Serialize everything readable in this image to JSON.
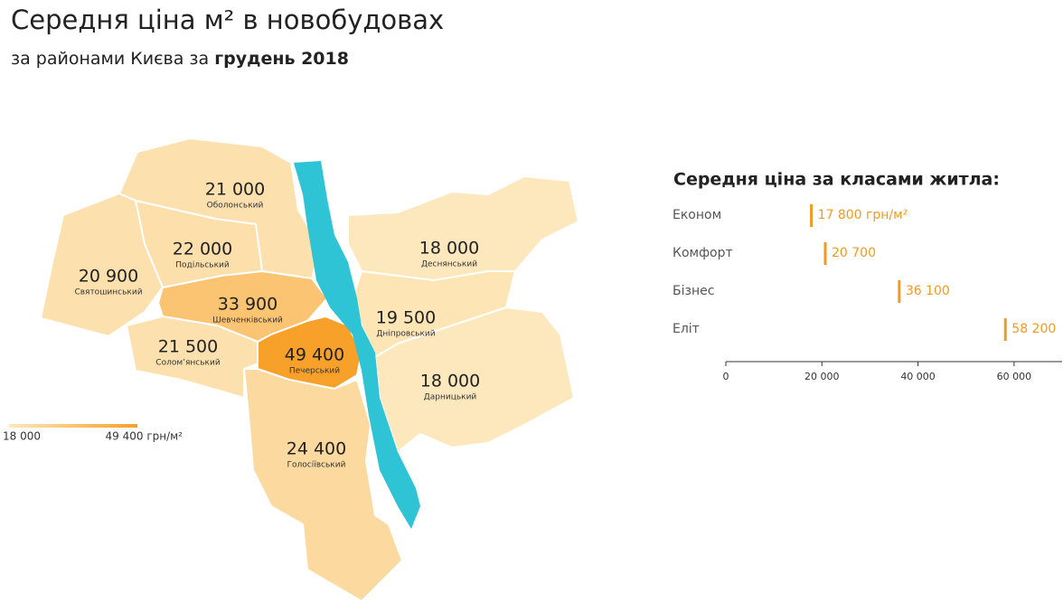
{
  "header": {
    "title": "Середня ціна м² в новобудовах",
    "subtitle": "за районами Києва за",
    "subtitle_emphasis": "грудень 2018"
  },
  "map": {
    "districts": [
      {
        "name": "Оболонський",
        "value": 21000,
        "label": "21 000"
      },
      {
        "name": "Подільський",
        "value": 22000,
        "label": "22 000"
      },
      {
        "name": "Святошинський",
        "value": 20900,
        "label": "20 900"
      },
      {
        "name": "Шевченківський",
        "value": 33900,
        "label": "33 900"
      },
      {
        "name": "Солом’янський",
        "value": 21500,
        "label": "21 500"
      },
      {
        "name": "Печерський",
        "value": 49400,
        "label": "49 400"
      },
      {
        "name": "Голосіївський",
        "value": 24400,
        "label": "24 400"
      },
      {
        "name": "Деснянський",
        "value": 18000,
        "label": "18 000"
      },
      {
        "name": "Дніпровський",
        "value": 19500,
        "label": "19 500"
      },
      {
        "name": "Дарницький",
        "value": 18000,
        "label": "18 000"
      }
    ],
    "legend": {
      "min": {
        "value": 18000,
        "label": "18 000"
      },
      "max": {
        "value": 49400,
        "label": "49 400 грн/м²"
      },
      "colors": [
        "#fde8bd",
        "#f7a02a"
      ]
    },
    "river_color": "#2ec4d6"
  },
  "chart_data": {
    "type": "bar",
    "orientation": "horizontal",
    "title": "Середня ціна за класами житла:",
    "categories": [
      "Економ",
      "Комфорт",
      "Бізнес",
      "Еліт"
    ],
    "values": [
      17800,
      20700,
      36100,
      58200
    ],
    "value_labels": [
      "17 800 грн/м²",
      "20 700",
      "36 100",
      "58 200"
    ],
    "color": "#f39a1e",
    "xlim": [
      0,
      70000
    ],
    "xticks": [
      0,
      {
        "value": 20000,
        "label": "20 000"
      },
      {
        "value": 40000,
        "label": "40 000"
      },
      {
        "value": 60000,
        "label": "60 000"
      }
    ]
  }
}
